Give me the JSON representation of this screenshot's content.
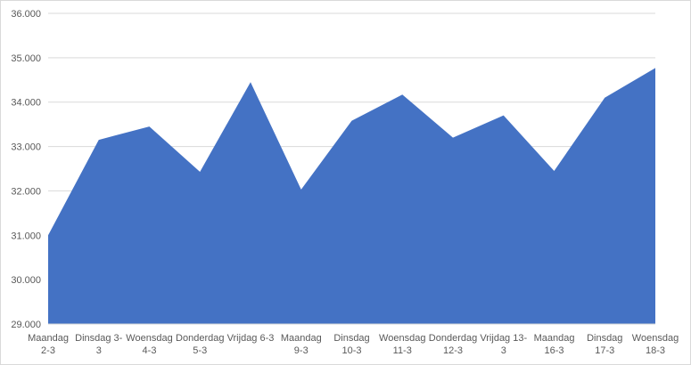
{
  "chart_data": {
    "type": "area",
    "categories": [
      [
        "Maandag",
        "2-3"
      ],
      [
        "Dinsdag 3-",
        "3"
      ],
      [
        "Woensdag",
        "4-3"
      ],
      [
        "Donderdag",
        "5-3"
      ],
      [
        "Vrijdag 6-3",
        ""
      ],
      [
        "Maandag",
        "9-3"
      ],
      [
        "Dinsdag",
        "10-3"
      ],
      [
        "Woensdag",
        "11-3"
      ],
      [
        "Donderdag",
        "12-3"
      ],
      [
        "Vrijdag 13-",
        "3"
      ],
      [
        "Maandag",
        "16-3"
      ],
      [
        "Dinsdag",
        "17-3"
      ],
      [
        "Woensdag",
        "18-3"
      ]
    ],
    "values": [
      31000,
      33150,
      33450,
      32430,
      34450,
      32030,
      33580,
      34170,
      33200,
      33700,
      32450,
      34100,
      34770
    ],
    "ylim": [
      29000,
      36000
    ],
    "yticks": [
      "29.000",
      "30.000",
      "31.000",
      "32.000",
      "33.000",
      "34.000",
      "35.000",
      "36.000"
    ],
    "grid": true,
    "fill_color": "#4472c4",
    "grid_color": "#d9d9d9"
  }
}
